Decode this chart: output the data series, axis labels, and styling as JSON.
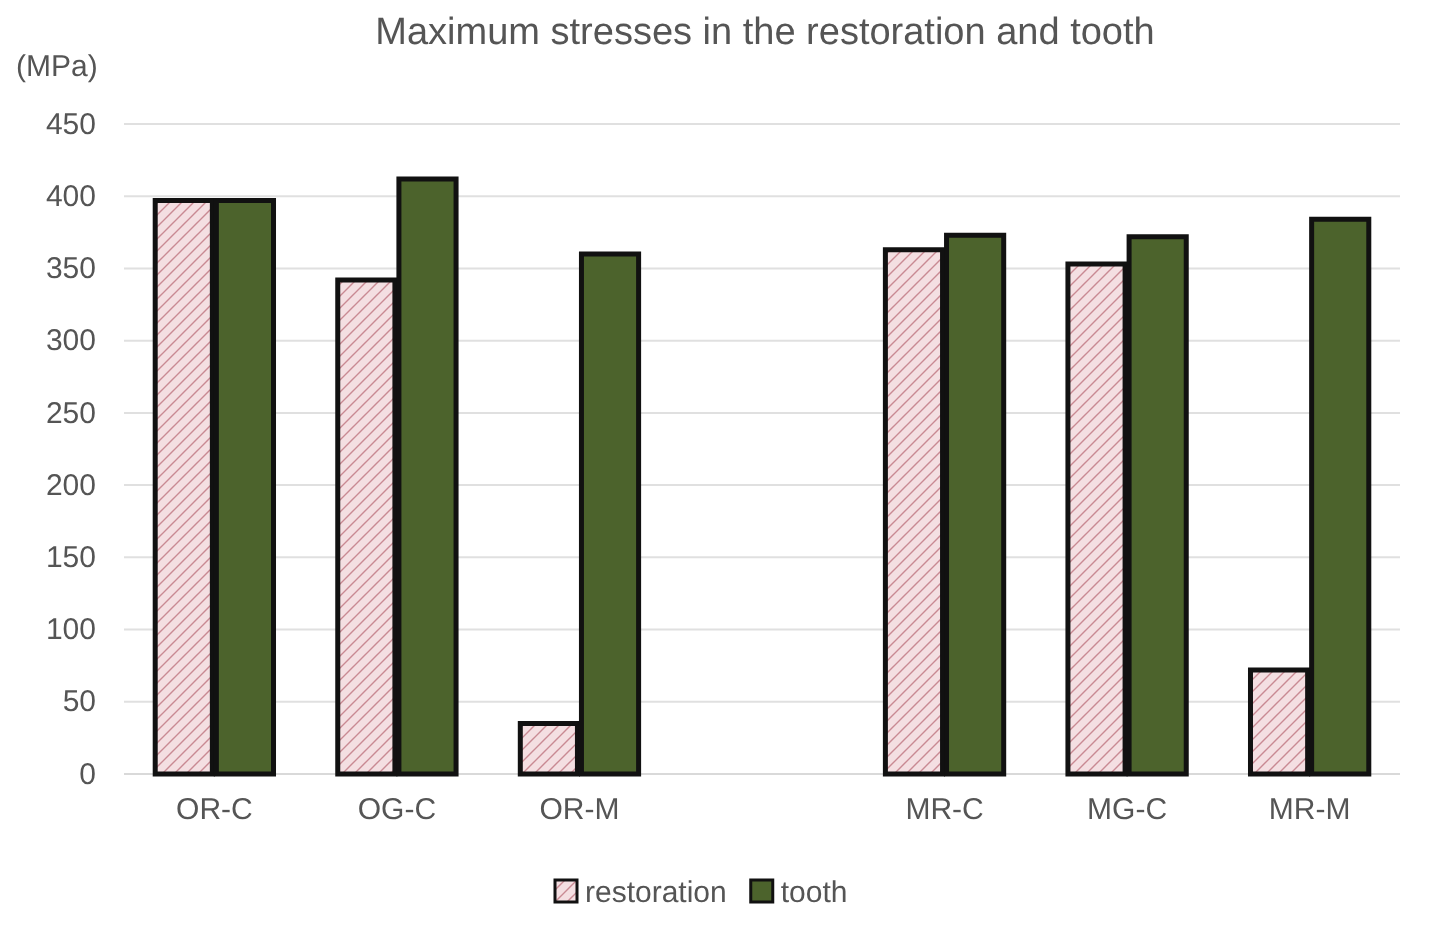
{
  "chart_data": {
    "type": "bar",
    "title": "Maximum stresses in the restoration and tooth",
    "ylabel": "(MPa)",
    "categories": [
      "OR-C",
      "OG-C",
      "OR-M",
      null,
      "MR-C",
      "MG-C",
      "MR-M"
    ],
    "series": [
      {
        "name": "restoration",
        "color": "#f4dfe2",
        "values": [
          397,
          342,
          35,
          null,
          363,
          353,
          72
        ]
      },
      {
        "name": "tooth",
        "color": "#4c632c",
        "values": [
          397,
          412,
          360,
          null,
          373,
          372,
          384
        ]
      }
    ],
    "ylim": [
      0,
      450
    ],
    "yticks": [
      0,
      50,
      100,
      150,
      200,
      250,
      300,
      350,
      400,
      450
    ],
    "grid": "y",
    "legend": "bottom"
  }
}
